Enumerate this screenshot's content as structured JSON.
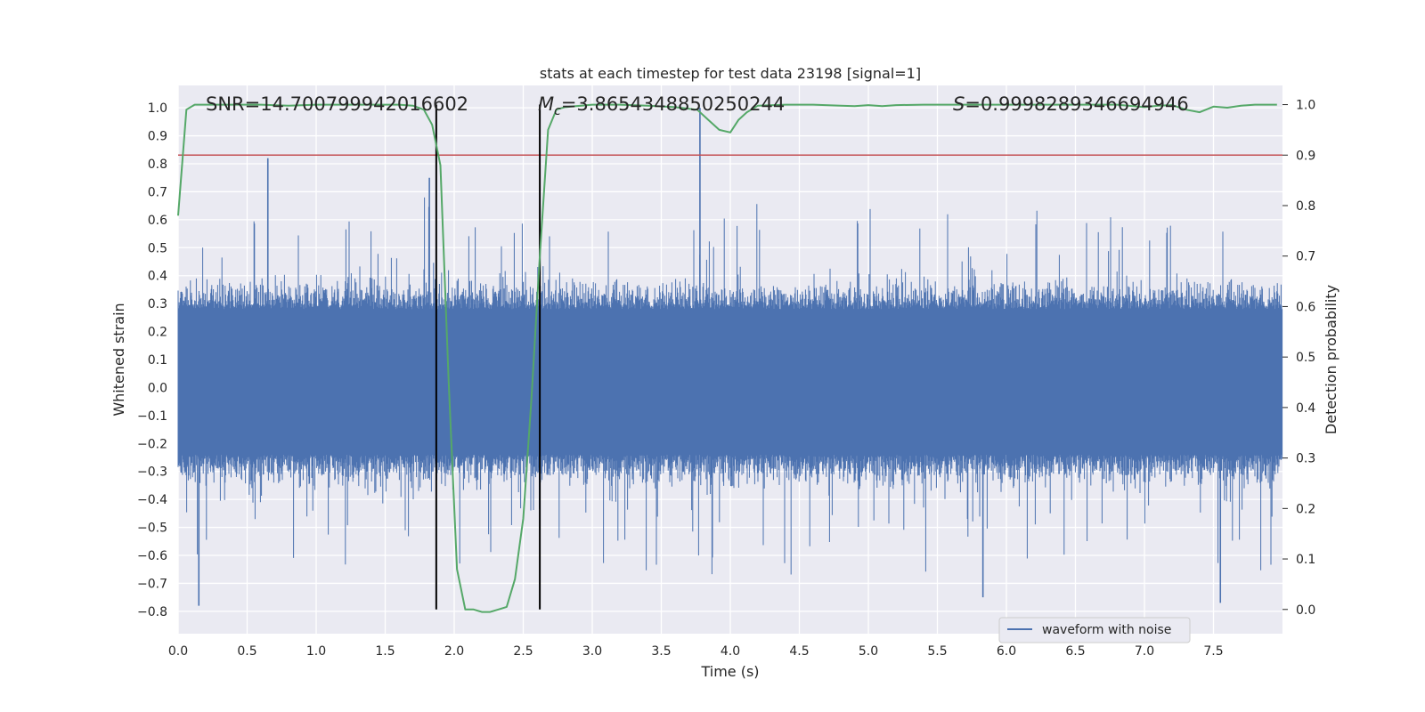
{
  "chart_data": {
    "type": "line",
    "title": "stats at each timestep for test data 23198 [signal=1]",
    "xlabel": "Time (s)",
    "ylabel": "Whitened strain",
    "y2label": "Detection probability",
    "xlim": [
      0.0,
      8.0
    ],
    "ylim": [
      -0.88,
      1.08
    ],
    "y2lim": [
      -0.048,
      1.038
    ],
    "xticks": [
      "0.0",
      "0.5",
      "1.0",
      "1.5",
      "2.0",
      "2.5",
      "3.0",
      "3.5",
      "4.0",
      "4.5",
      "5.0",
      "5.5",
      "6.0",
      "6.5",
      "7.0",
      "7.5"
    ],
    "yticks": [
      "-0.8",
      "-0.7",
      "-0.6",
      "-0.5",
      "-0.4",
      "-0.3",
      "-0.2",
      "-0.1",
      "0.0",
      "0.1",
      "0.2",
      "0.3",
      "0.4",
      "0.5",
      "0.6",
      "0.7",
      "0.8",
      "0.9",
      "1.0"
    ],
    "y2ticks": [
      "0.0",
      "0.1",
      "0.2",
      "0.3",
      "0.4",
      "0.5",
      "0.6",
      "0.7",
      "0.8",
      "0.9",
      "1.0"
    ],
    "grid": true,
    "legend": {
      "position": "bottom-right",
      "entries": [
        "waveform with noise"
      ]
    },
    "annotations": {
      "snr": "SNR=14.700799942016602",
      "mc_symbol": "M",
      "mc_sub": "c",
      "mc_value": "=3.8654348850250244",
      "s_symbol": "S",
      "s_value": "=0.9998289346694946"
    },
    "threshold_y2": 0.9,
    "vlines_x": [
      1.87,
      2.62
    ],
    "waveform": {
      "name": "waveform with noise",
      "x_range": [
        0.0,
        8.0
      ],
      "dense_band": [
        -0.24,
        0.28
      ],
      "notable_peaks": [
        {
          "x": 0.65,
          "y": 0.82
        },
        {
          "x": 1.82,
          "y": 0.75
        },
        {
          "x": 3.78,
          "y": 1.0
        },
        {
          "x": 0.15,
          "y": -0.78
        },
        {
          "x": 5.83,
          "y": -0.75
        },
        {
          "x": 7.55,
          "y": -0.77
        }
      ]
    },
    "series": [
      {
        "name": "detection probability",
        "x": [
          0.0,
          0.06,
          0.12,
          0.2,
          0.4,
          0.6,
          0.8,
          1.0,
          1.2,
          1.4,
          1.6,
          1.7,
          1.78,
          1.84,
          1.9,
          1.96,
          2.02,
          2.08,
          2.14,
          2.2,
          2.26,
          2.32,
          2.38,
          2.44,
          2.5,
          2.56,
          2.62,
          2.68,
          2.74,
          2.8,
          3.0,
          3.2,
          3.4,
          3.6,
          3.76,
          3.84,
          3.92,
          4.0,
          4.06,
          4.12,
          4.2,
          4.4,
          4.6,
          4.8,
          4.9,
          5.0,
          5.1,
          5.2,
          5.4,
          5.6,
          5.8,
          6.0,
          6.2,
          6.4,
          6.6,
          6.8,
          7.0,
          7.1,
          7.2,
          7.3,
          7.4,
          7.5,
          7.6,
          7.7,
          7.8,
          7.9,
          7.96
        ],
        "values": [
          0.78,
          0.99,
          1.0,
          1.0,
          1.0,
          1.0,
          0.998,
          1.0,
          1.0,
          1.0,
          1.0,
          0.998,
          0.99,
          0.96,
          0.88,
          0.45,
          0.08,
          0.0,
          0.0,
          -0.005,
          -0.005,
          0.0,
          0.005,
          0.06,
          0.18,
          0.42,
          0.7,
          0.95,
          0.99,
          0.995,
          1.0,
          1.0,
          0.998,
          0.995,
          0.99,
          0.97,
          0.95,
          0.945,
          0.97,
          0.985,
          0.998,
          1.0,
          1.0,
          0.998,
          0.997,
          0.999,
          0.997,
          0.999,
          1.0,
          1.0,
          1.0,
          1.0,
          1.0,
          1.0,
          1.0,
          1.0,
          0.995,
          0.998,
          0.999,
          0.99,
          0.985,
          0.996,
          0.994,
          0.998,
          1.0,
          1.0,
          1.0
        ]
      }
    ]
  },
  "colors": {
    "plot_bg": "#eaeaf2",
    "grid": "#ffffff",
    "waveform": "#4c72b0",
    "probability": "#55a868",
    "threshold": "#c44e52",
    "vline": "#000000"
  }
}
